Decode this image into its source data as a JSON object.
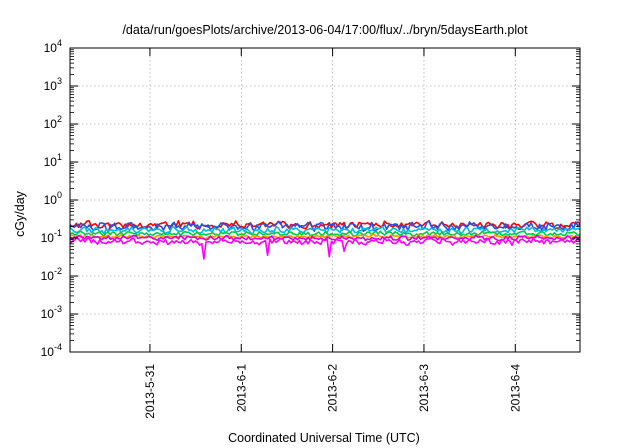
{
  "chart_data": {
    "type": "line",
    "title": "/data/run/goesPlots/archive/2013-06-04/17:00/flux/../bryn/5daysEarth.plot",
    "xlabel": "Coordinated Universal Time (UTC)",
    "ylabel": "cGy/day",
    "yscale": "log",
    "ylim": [
      0.0001,
      10000
    ],
    "xlim": [
      "2013-05-30 03:00",
      "2013-06-04 17:00"
    ],
    "grid": true,
    "x_ticks": [
      "2013-5-31",
      "2013-6-1",
      "2013-6-2",
      "2013-6-3",
      "2013-6-4"
    ],
    "y_ticks": [
      {
        "base": "10",
        "exp": "-4"
      },
      {
        "base": "10",
        "exp": "-3"
      },
      {
        "base": "10",
        "exp": "-2"
      },
      {
        "base": "10",
        "exp": "-1"
      },
      {
        "base": "10",
        "exp": "0"
      },
      {
        "base": "10",
        "exp": "1"
      },
      {
        "base": "10",
        "exp": "2"
      },
      {
        "base": "10",
        "exp": "3"
      },
      {
        "base": "10",
        "exp": "4"
      }
    ],
    "series": [
      {
        "color": "#ff0000",
        "level": 0.22,
        "amplitude": 0.16
      },
      {
        "color": "#2a4fe0",
        "level": 0.2,
        "amplitude": 0.2
      },
      {
        "color": "#00bbdd",
        "level": 0.16,
        "amplitude": 0.14
      },
      {
        "color": "#00cc44",
        "level": 0.13,
        "amplitude": 0.1
      },
      {
        "color": "#ff9900",
        "level": 0.11,
        "amplitude": 0.08
      },
      {
        "color": "#dd00dd",
        "level": 0.1,
        "amplitude": 0.1
      },
      {
        "color": "#ff00ff",
        "level": 0.08,
        "amplitude": 0.14
      }
    ],
    "dips": [
      {
        "time": "2013-05-31 14:00",
        "value": 0.028
      },
      {
        "time": "2013-06-01 07:00",
        "value": 0.035
      },
      {
        "time": "2013-06-01 23:00",
        "value": 0.032
      },
      {
        "time": "2013-06-02 03:00",
        "value": 0.045
      }
    ]
  }
}
